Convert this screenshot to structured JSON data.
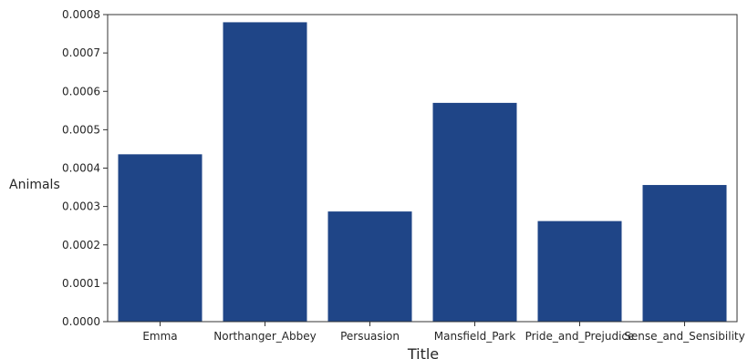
{
  "chart_data": {
    "type": "bar",
    "categories": [
      "Emma",
      "Northanger_Abbey",
      "Persuasion",
      "Mansfield_Park",
      "Pride_and_Prejudice",
      "Sense_and_Sensibility"
    ],
    "values": [
      0.000436,
      0.00078,
      0.000287,
      0.00057,
      0.000262,
      0.000356
    ],
    "xlabel": "Title",
    "ylabel": "Animals",
    "ylim": [
      0,
      0.0008
    ],
    "yticks": [
      "0.0000",
      "0.0001",
      "0.0002",
      "0.0003",
      "0.0004",
      "0.0005",
      "0.0006",
      "0.0007",
      "0.0008"
    ],
    "bar_color": "#1f4587",
    "grid": false,
    "legend": "none"
  }
}
